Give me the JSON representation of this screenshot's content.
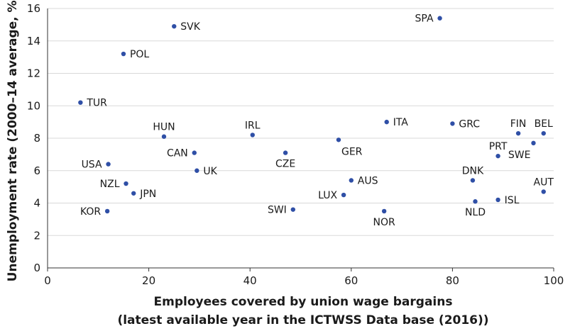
{
  "chart_data": {
    "type": "scatter",
    "title": "",
    "xlabel_line1": "Employees covered by union wage bargains",
    "xlabel_line2": "(latest available year in the ICTWSS Data base (2016))",
    "ylabel": "Unemployment rate (2000–14 average, %)",
    "xlim": [
      0,
      100
    ],
    "ylim": [
      0,
      16
    ],
    "x_ticks": [
      0,
      20,
      40,
      60,
      80,
      100
    ],
    "y_ticks": [
      0,
      2,
      4,
      6,
      8,
      10,
      12,
      14,
      16
    ],
    "grid": "horizontal",
    "point_color": "#2f4fa6",
    "points": [
      {
        "label": "SPA",
        "x": 77.5,
        "y": 15.4,
        "pos": "left"
      },
      {
        "label": "SVK",
        "x": 25,
        "y": 14.9,
        "pos": "right"
      },
      {
        "label": "POL",
        "x": 15,
        "y": 13.2,
        "pos": "right"
      },
      {
        "label": "TUR",
        "x": 6.5,
        "y": 10.2,
        "pos": "right"
      },
      {
        "label": "HUN",
        "x": 23,
        "y": 8.1,
        "pos": "above"
      },
      {
        "label": "IRL",
        "x": 40.5,
        "y": 8.2,
        "pos": "above"
      },
      {
        "label": "ITA",
        "x": 67,
        "y": 9.0,
        "pos": "right"
      },
      {
        "label": "GRC",
        "x": 80,
        "y": 8.9,
        "pos": "right"
      },
      {
        "label": "FIN",
        "x": 93,
        "y": 8.3,
        "pos": "above"
      },
      {
        "label": "BEL",
        "x": 98,
        "y": 8.3,
        "pos": "above"
      },
      {
        "label": "GER",
        "x": 57.5,
        "y": 7.9,
        "pos": "below-right"
      },
      {
        "label": "CAN",
        "x": 29,
        "y": 7.1,
        "pos": "left"
      },
      {
        "label": "CZE",
        "x": 47,
        "y": 7.1,
        "pos": "below"
      },
      {
        "label": "SWE",
        "x": 96,
        "y": 7.7,
        "pos": "below-left"
      },
      {
        "label": "PRT",
        "x": 89,
        "y": 6.9,
        "pos": "above"
      },
      {
        "label": "USA",
        "x": 12,
        "y": 6.4,
        "pos": "left"
      },
      {
        "label": "UK",
        "x": 29.5,
        "y": 6.0,
        "pos": "right"
      },
      {
        "label": "DNK",
        "x": 84,
        "y": 5.4,
        "pos": "above"
      },
      {
        "label": "AUS",
        "x": 60,
        "y": 5.4,
        "pos": "right"
      },
      {
        "label": "NZL",
        "x": 15.5,
        "y": 5.2,
        "pos": "left"
      },
      {
        "label": "JPN",
        "x": 17,
        "y": 4.6,
        "pos": "right"
      },
      {
        "label": "AUT",
        "x": 98,
        "y": 4.7,
        "pos": "above"
      },
      {
        "label": "LUX",
        "x": 58.5,
        "y": 4.5,
        "pos": "left"
      },
      {
        "label": "ISL",
        "x": 89,
        "y": 4.2,
        "pos": "right"
      },
      {
        "label": "NLD",
        "x": 84.5,
        "y": 4.1,
        "pos": "below"
      },
      {
        "label": "SWI",
        "x": 48.5,
        "y": 3.6,
        "pos": "left"
      },
      {
        "label": "KOR",
        "x": 11.8,
        "y": 3.5,
        "pos": "left"
      },
      {
        "label": "NOR",
        "x": 66.5,
        "y": 3.5,
        "pos": "below"
      }
    ]
  }
}
